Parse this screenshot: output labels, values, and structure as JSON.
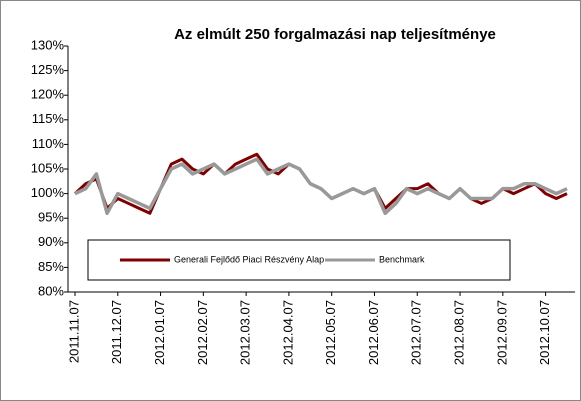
{
  "chart_data": {
    "type": "line",
    "title": "Az elmúlt 250 forgalmazási nap teljesítménye",
    "categories": [
      "2011.11.07",
      null,
      null,
      null,
      "2011.12.07",
      null,
      null,
      null,
      "2012.01.07",
      null,
      null,
      null,
      "2012.02.07",
      null,
      null,
      null,
      "2012.03.07",
      null,
      null,
      null,
      "2012.04.07",
      null,
      null,
      null,
      "2012.05.07",
      null,
      null,
      null,
      "2012.06.07",
      null,
      null,
      null,
      "2012.07.07",
      null,
      null,
      null,
      "2012.08.07",
      null,
      null,
      null,
      "2012.09.07",
      null,
      null,
      null,
      "2012.10.07",
      null,
      null
    ],
    "series": [
      {
        "name": "Generali Fejlődő Piaci Részvény Alap",
        "color": "#800000",
        "values": [
          100,
          102,
          103,
          97,
          99,
          98,
          97,
          96,
          101,
          106,
          107,
          105,
          104,
          106,
          104,
          106,
          107,
          108,
          105,
          104,
          106,
          105,
          102,
          101,
          99,
          100,
          101,
          100,
          101,
          97,
          99,
          101,
          101,
          102,
          100,
          99,
          101,
          99,
          98,
          99,
          101,
          100,
          101,
          102,
          100,
          99,
          100
        ]
      },
      {
        "name": "Benchmark",
        "color": "#999999",
        "values": [
          100,
          101,
          104,
          96,
          100,
          99,
          98,
          97,
          101,
          105,
          106,
          104,
          105,
          106,
          104,
          105,
          106,
          107,
          104,
          105,
          106,
          105,
          102,
          101,
          99,
          100,
          101,
          100,
          101,
          96,
          98,
          101,
          100,
          101,
          100,
          99,
          101,
          99,
          99,
          99,
          101,
          101,
          102,
          102,
          101,
          100,
          101
        ]
      }
    ],
    "ylim": [
      80,
      130
    ],
    "yticks": [
      {
        "value": 80,
        "label": "80%"
      },
      {
        "value": 85,
        "label": "85%"
      },
      {
        "value": 90,
        "label": "90%"
      },
      {
        "value": 95,
        "label": "95%"
      },
      {
        "value": 100,
        "label": "100%"
      },
      {
        "value": 105,
        "label": "105%"
      },
      {
        "value": 110,
        "label": "110%"
      },
      {
        "value": 115,
        "label": "115%"
      },
      {
        "value": 120,
        "label": "120%"
      },
      {
        "value": 125,
        "label": "125%"
      },
      {
        "value": 130,
        "label": "130%"
      }
    ],
    "grid": false
  }
}
